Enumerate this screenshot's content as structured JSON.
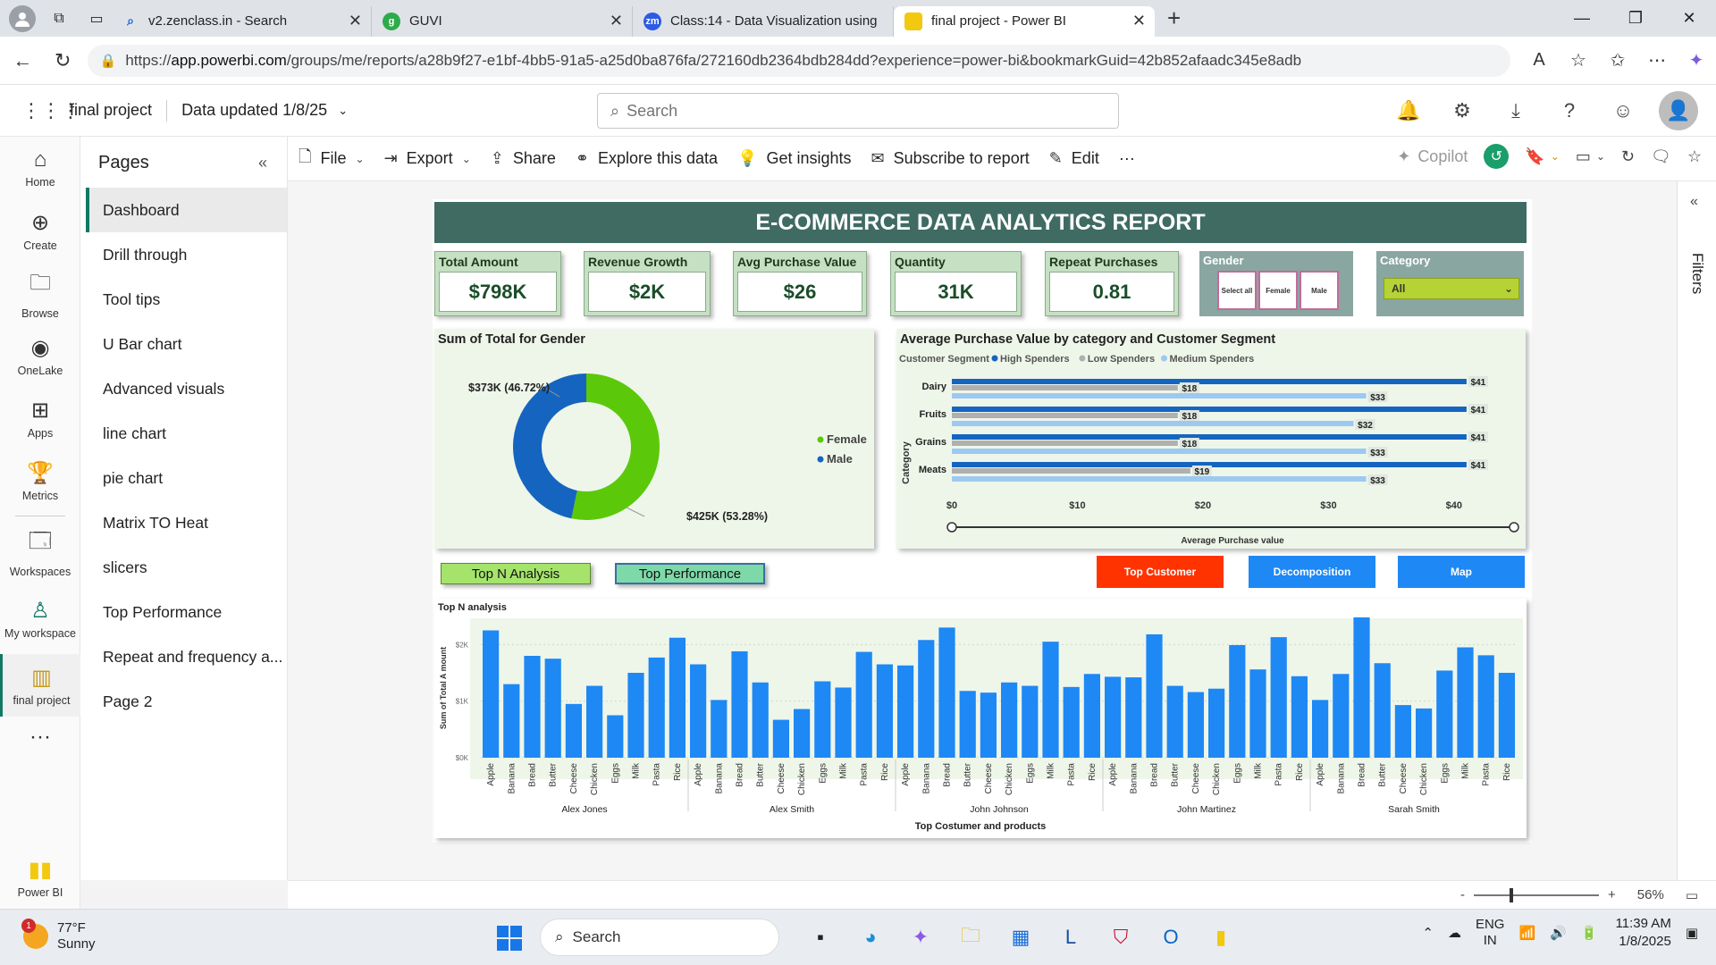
{
  "browser": {
    "tabs": [
      {
        "label": "v2.zenclass.in - Search",
        "icon": "search-icon",
        "color": "#dfe3e8"
      },
      {
        "label": "GUVI",
        "icon": "guvi-icon",
        "color": "#2eaa4a"
      },
      {
        "label": "Class:14 - Data Visualization using",
        "icon": "zoom-icon",
        "color": "#2d5be3"
      },
      {
        "label": "final project - Power BI",
        "icon": "powerbi-icon",
        "color": "#f2c811"
      }
    ],
    "url_prefix": "https://",
    "url_host": "app.powerbi.com",
    "url_path": "/groups/me/reports/a28b9f27-e1bf-4bb5-91a5-a25d0ba876fa/272160db2364bdb284dd?experience=power-bi&bookmarkGuid=42b852afaadc345e8adb"
  },
  "pbi_header": {
    "title": "final project",
    "updated": "Data updated 1/8/25",
    "search_placeholder": "Search"
  },
  "leftnav": [
    {
      "label": "Home",
      "icon": "home-icon"
    },
    {
      "label": "Create",
      "icon": "plus-icon"
    },
    {
      "label": "Browse",
      "icon": "folder-icon"
    },
    {
      "label": "OneLake",
      "icon": "onelake-icon"
    },
    {
      "label": "Apps",
      "icon": "apps-icon"
    },
    {
      "label": "Metrics",
      "icon": "trophy-icon"
    },
    {
      "label": "Workspaces",
      "icon": "workspaces-icon"
    },
    {
      "label": "My workspace",
      "icon": "person-icon"
    },
    {
      "label": "final project",
      "icon": "report-icon"
    },
    {
      "label": "Power BI",
      "icon": "powerbi-logo-icon"
    }
  ],
  "pages": {
    "heading": "Pages",
    "items": [
      "Dashboard",
      "Drill through",
      "Tool tips",
      "U Bar chart",
      "Advanced visuals",
      "line chart",
      "pie chart",
      "Matrix TO Heat",
      "slicers",
      "Top Performance",
      "Repeat and frequency a...",
      "Page 2"
    ],
    "active_index": 0
  },
  "toolbar": {
    "file": "File",
    "export": "Export",
    "share": "Share",
    "explore": "Explore this data",
    "insights": "Get insights",
    "subscribe": "Subscribe to report",
    "edit": "Edit",
    "more": "···",
    "copilot": "Copilot"
  },
  "filters": {
    "label": "Filters"
  },
  "statusbar": {
    "zoom": "56%",
    "minus": "-",
    "plus": "+"
  },
  "report": {
    "title": "E-COMMERCE DATA ANALYTICS REPORT",
    "kpis": [
      {
        "label": "Total Amount",
        "value": "$798K"
      },
      {
        "label": "Revenue Growth",
        "value": "$2K"
      },
      {
        "label": "Avg Purchase Value",
        "value": "$26"
      },
      {
        "label": "Quantity",
        "value": "31K"
      },
      {
        "label": "Repeat Purchases",
        "value": "0.81"
      }
    ],
    "gender_slicer": {
      "label": "Gender",
      "options": [
        "Select all",
        "Female",
        "Male"
      ]
    },
    "category_slicer": {
      "label": "Category",
      "value": "All"
    },
    "buttons": {
      "top_n": "Top N Analysis",
      "top_perf": "Top Performance",
      "top_customer": "Top Customer",
      "decomposition": "Decomposition",
      "map": "Map"
    },
    "colors": {
      "title_bar": "#3f6b63",
      "kpi_bg": "#c5e0c3",
      "female": "#5bc90a",
      "male": "#1565c0",
      "bar": "#1e88f5",
      "high": "#1565c0",
      "low": "#b0b0b0",
      "medium": "#9dc9f0",
      "top_customer": "#ff3300",
      "nav_btn": "#1e88f5"
    }
  },
  "chart_data": [
    {
      "type": "pie",
      "title": "Sum of Total for Gender",
      "labels": [
        "Female",
        "Male"
      ],
      "values": [
        425,
        373
      ],
      "data_labels": [
        "$425K (53.28%)",
        "$373K (46.72%)"
      ],
      "legend": [
        "Female",
        "Male"
      ]
    },
    {
      "type": "bar",
      "orientation": "horizontal",
      "title": "Average Purchase Value by category and Customer Segment",
      "legend_title": "Customer Segment",
      "categories": [
        "Dairy",
        "Fruits",
        "Grains",
        "Meats"
      ],
      "series": [
        {
          "name": "High Spenders",
          "values": [
            41,
            41,
            41,
            41
          ]
        },
        {
          "name": "Low Spenders",
          "values": [
            18,
            18,
            18,
            19
          ]
        },
        {
          "name": "Medium Spenders",
          "values": [
            33,
            32,
            33,
            33
          ]
        }
      ],
      "xlabel": "Average Purchase value",
      "ylabel": "Category",
      "xticks": [
        "$0",
        "$10",
        "$20",
        "$30",
        "$40"
      ],
      "xlim": [
        0,
        43
      ]
    },
    {
      "type": "bar",
      "title": "Top N analysis",
      "xlabel": "Top Costumer and products",
      "ylabel": "Sum of Total A mount",
      "yticks": [
        "$0K",
        "$1K",
        "$2K"
      ],
      "ylim": [
        0,
        2.4
      ],
      "groups": [
        {
          "name": "Alex Jones",
          "products": [
            "Apple",
            "Banana",
            "Bread",
            "Butter",
            "Cheese",
            "Chicken",
            "Eggs",
            "Milk",
            "Pasta",
            "Rice"
          ],
          "values": [
            2.25,
            1.3,
            1.8,
            1.75,
            0.95,
            1.27,
            0.75,
            1.5,
            1.77,
            2.12
          ]
        },
        {
          "name": "Alex Smith",
          "products": [
            "Apple",
            "Banana",
            "Bread",
            "Butter",
            "Cheese",
            "Chicken",
            "Eggs",
            "Milk",
            "Pasta",
            "Rice"
          ],
          "values": [
            1.65,
            1.02,
            1.88,
            1.33,
            0.67,
            0.86,
            1.35,
            1.24,
            1.87,
            1.65
          ]
        },
        {
          "name": "John Johnson",
          "products": [
            "Apple",
            "Banana",
            "Bread",
            "Butter",
            "Cheese",
            "Chicken",
            "Eggs",
            "Milk",
            "Pasta",
            "Rice"
          ],
          "values": [
            1.63,
            2.08,
            2.3,
            1.18,
            1.15,
            1.33,
            1.27,
            2.05,
            1.25,
            1.48
          ]
        },
        {
          "name": "John Martinez",
          "products": [
            "Apple",
            "Banana",
            "Bread",
            "Butter",
            "Cheese",
            "Chicken",
            "Eggs",
            "Milk",
            "Pasta",
            "Rice"
          ],
          "values": [
            1.43,
            1.42,
            2.18,
            1.27,
            1.16,
            1.22,
            1.99,
            1.56,
            2.13,
            1.44
          ]
        },
        {
          "name": "Sarah Smith",
          "products": [
            "Apple",
            "Banana",
            "Bread",
            "Butter",
            "Cheese",
            "Chicken",
            "Eggs",
            "Milk",
            "Pasta",
            "Rice"
          ],
          "values": [
            1.02,
            1.48,
            2.48,
            1.67,
            0.93,
            0.87,
            1.54,
            1.95,
            1.81,
            1.5
          ]
        }
      ]
    }
  ],
  "taskbar": {
    "temp": "77°F",
    "condition": "Sunny",
    "weather_badge": "1",
    "search": "Search",
    "lang1": "ENG",
    "lang2": "IN",
    "time": "11:39 AM",
    "date": "1/8/2025"
  }
}
